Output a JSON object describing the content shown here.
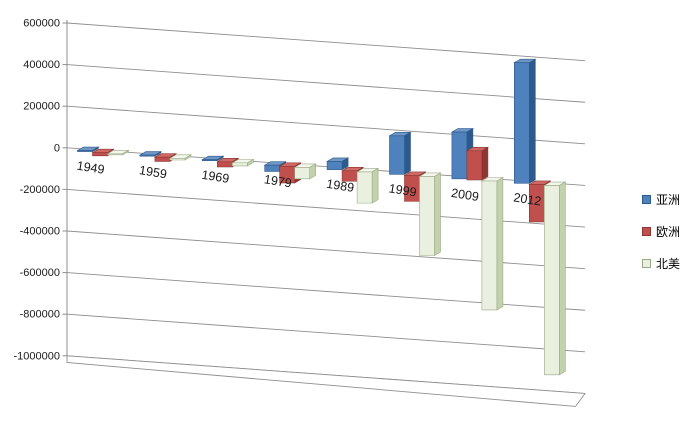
{
  "chart_data": {
    "type": "bar",
    "variant": "3d-clustered-column",
    "title": "",
    "categories": [
      "1949",
      "1959",
      "1969",
      "1979",
      "1989",
      "1999",
      "2009",
      "2012"
    ],
    "series": [
      {
        "name": "亚洲",
        "key": "asia",
        "color": "#4f81bd",
        "color_top": "#6f97c6",
        "color_side": "#2c5a8c",
        "color_edge": "#2c5a8c",
        "values": [
          5000,
          5000,
          5000,
          -30000,
          40000,
          185000,
          225000,
          580000
        ]
      },
      {
        "name": "欧洲",
        "key": "europe",
        "color": "#c0504d",
        "color_top": "#cd6a66",
        "color_side": "#8e3431",
        "color_edge": "#8e3431",
        "values": [
          -15000,
          -20000,
          -25000,
          -80000,
          -50000,
          -125000,
          140000,
          -180000
        ]
      },
      {
        "name": "北美",
        "key": "north-america",
        "color": "#eaf0df",
        "color_top": "#f4f7ee",
        "color_side": "#c4d1ad",
        "color_edge": "#9aa884",
        "values": [
          -5000,
          -8000,
          -15000,
          -55000,
          -150000,
          -380000,
          -620000,
          -910000
        ]
      }
    ],
    "y_axis": {
      "min": -1000000,
      "max": 600000,
      "step": 200000,
      "tick_labels": [
        "600000",
        "400000",
        "200000",
        "0",
        "-200000",
        "-400000",
        "-600000",
        "-800000",
        "-1000000"
      ]
    },
    "grid": true,
    "legend_position": "right",
    "background": "#ffffff",
    "gridline_color": "#8e8e8e",
    "axis_color": "#8e8e8e",
    "text_color": "#1a1a1a"
  }
}
